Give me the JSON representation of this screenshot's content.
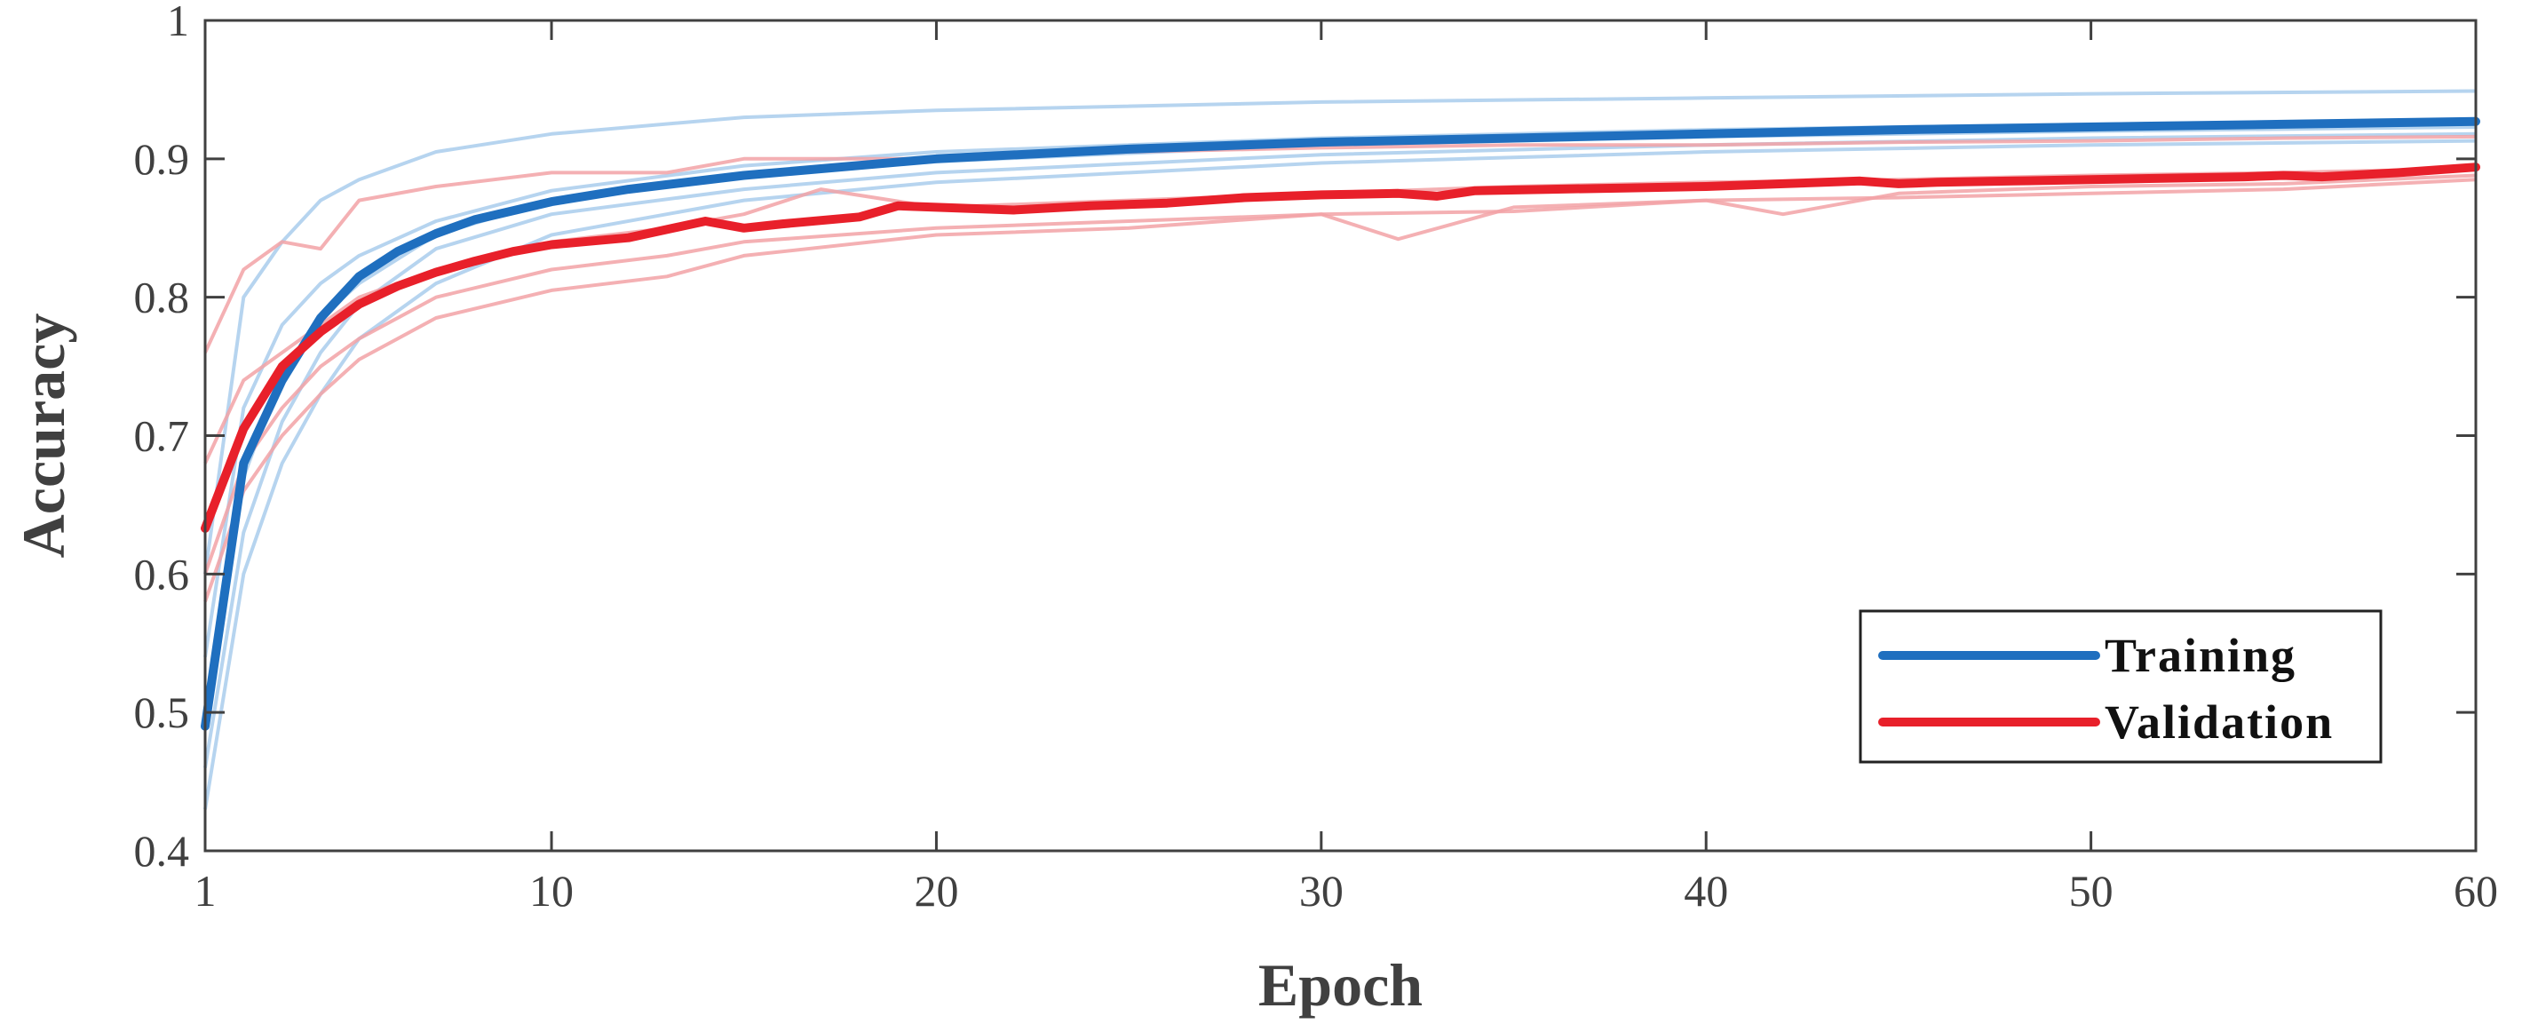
{
  "chart_data": {
    "type": "line",
    "title": "",
    "xlabel": "Epoch",
    "ylabel": "Accuracy",
    "xlim": [
      1,
      60
    ],
    "ylim": [
      0.4,
      1.0
    ],
    "xticks": [
      1,
      10,
      20,
      30,
      40,
      50,
      60
    ],
    "yticks": [
      0.4,
      0.5,
      0.6,
      0.7,
      0.8,
      0.9,
      1.0
    ],
    "ytick_labels": [
      "0.4",
      "0.5",
      "0.6",
      "0.7",
      "0.8",
      "0.9",
      "1"
    ],
    "grid": false,
    "legend_position": "bottom-right",
    "colors": {
      "training": "#1f6fbf",
      "validation": "#e8202a",
      "training_faint": "#a9cdec",
      "validation_faint": "#f2a2a6",
      "axes": "#404040"
    },
    "series": [
      {
        "name": "Training",
        "kind": "mean",
        "x": [
          1,
          2,
          3,
          4,
          5,
          6,
          7,
          8,
          10,
          12,
          15,
          20,
          25,
          30,
          35,
          40,
          45,
          50,
          55,
          60
        ],
        "values": [
          0.49,
          0.68,
          0.74,
          0.785,
          0.815,
          0.833,
          0.846,
          0.856,
          0.869,
          0.878,
          0.888,
          0.9,
          0.907,
          0.912,
          0.915,
          0.918,
          0.921,
          0.923,
          0.925,
          0.927
        ]
      },
      {
        "name": "Validation",
        "kind": "mean",
        "x": [
          1,
          2,
          3,
          4,
          5,
          6,
          7,
          8,
          9,
          10,
          12,
          14,
          15,
          16,
          18,
          19,
          20,
          22,
          24,
          26,
          28,
          30,
          32,
          33,
          34,
          36,
          38,
          40,
          42,
          44,
          45,
          46,
          48,
          50,
          52,
          54,
          55,
          56,
          58,
          60
        ],
        "values": [
          0.633,
          0.705,
          0.75,
          0.775,
          0.795,
          0.808,
          0.818,
          0.826,
          0.833,
          0.838,
          0.843,
          0.855,
          0.85,
          0.853,
          0.858,
          0.866,
          0.865,
          0.863,
          0.866,
          0.868,
          0.872,
          0.874,
          0.875,
          0.873,
          0.877,
          0.878,
          0.879,
          0.88,
          0.882,
          0.884,
          0.882,
          0.883,
          0.884,
          0.885,
          0.886,
          0.887,
          0.888,
          0.887,
          0.89,
          0.894
        ]
      }
    ],
    "runs": [
      {
        "group": "training",
        "x": [
          1,
          2,
          3,
          4,
          5,
          7,
          10,
          15,
          20,
          30,
          40,
          50,
          60
        ],
        "values": [
          0.43,
          0.6,
          0.68,
          0.73,
          0.77,
          0.81,
          0.845,
          0.87,
          0.883,
          0.897,
          0.905,
          0.91,
          0.913
        ]
      },
      {
        "group": "training",
        "x": [
          1,
          2,
          3,
          4,
          5,
          7,
          10,
          15,
          20,
          30,
          40,
          50,
          60
        ],
        "values": [
          0.46,
          0.63,
          0.71,
          0.76,
          0.795,
          0.835,
          0.86,
          0.878,
          0.89,
          0.903,
          0.91,
          0.915,
          0.918
        ]
      },
      {
        "group": "training",
        "x": [
          1,
          2,
          3,
          4,
          5,
          7,
          10,
          15,
          20,
          30,
          40,
          50,
          60
        ],
        "values": [
          0.5,
          0.67,
          0.745,
          0.785,
          0.81,
          0.845,
          0.87,
          0.888,
          0.898,
          0.91,
          0.916,
          0.92,
          0.923
        ]
      },
      {
        "group": "training",
        "x": [
          1,
          2,
          3,
          4,
          5,
          7,
          10,
          15,
          20,
          30,
          40,
          50,
          60
        ],
        "values": [
          0.54,
          0.72,
          0.78,
          0.81,
          0.83,
          0.855,
          0.877,
          0.895,
          0.905,
          0.915,
          0.921,
          0.925,
          0.928
        ]
      },
      {
        "group": "training",
        "x": [
          1,
          2,
          3,
          4,
          5,
          7,
          10,
          15,
          20,
          30,
          40,
          50,
          60
        ],
        "values": [
          0.6,
          0.8,
          0.84,
          0.87,
          0.885,
          0.905,
          0.918,
          0.93,
          0.935,
          0.941,
          0.944,
          0.947,
          0.949
        ]
      },
      {
        "group": "validation",
        "x": [
          1,
          2,
          3,
          4,
          5,
          7,
          10,
          13,
          15,
          20,
          25,
          30,
          35,
          40,
          45,
          50,
          55,
          60
        ],
        "values": [
          0.58,
          0.66,
          0.7,
          0.73,
          0.755,
          0.785,
          0.805,
          0.815,
          0.83,
          0.845,
          0.85,
          0.86,
          0.862,
          0.87,
          0.872,
          0.875,
          0.878,
          0.885
        ]
      },
      {
        "group": "validation",
        "x": [
          1,
          2,
          3,
          4,
          5,
          7,
          10,
          13,
          15,
          20,
          25,
          30,
          32,
          35,
          40,
          42,
          45,
          50,
          55,
          60
        ],
        "values": [
          0.6,
          0.68,
          0.72,
          0.75,
          0.77,
          0.8,
          0.82,
          0.83,
          0.84,
          0.85,
          0.855,
          0.86,
          0.842,
          0.865,
          0.87,
          0.86,
          0.875,
          0.88,
          0.882,
          0.888
        ]
      },
      {
        "group": "validation",
        "x": [
          1,
          2,
          3,
          4,
          5,
          7,
          10,
          13,
          15,
          17,
          20,
          25,
          30,
          35,
          40,
          45,
          50,
          55,
          60
        ],
        "values": [
          0.68,
          0.74,
          0.76,
          0.78,
          0.8,
          0.82,
          0.84,
          0.85,
          0.86,
          0.878,
          0.865,
          0.87,
          0.875,
          0.88,
          0.883,
          0.885,
          0.888,
          0.89,
          0.893
        ]
      },
      {
        "group": "validation",
        "x": [
          1,
          2,
          3,
          4,
          5,
          7,
          10,
          13,
          15,
          20,
          25,
          30,
          35,
          40,
          45,
          50,
          55,
          60
        ],
        "values": [
          0.76,
          0.82,
          0.84,
          0.835,
          0.87,
          0.88,
          0.89,
          0.89,
          0.9,
          0.9,
          0.905,
          0.908,
          0.91,
          0.91,
          0.912,
          0.913,
          0.915,
          0.916
        ]
      }
    ]
  }
}
